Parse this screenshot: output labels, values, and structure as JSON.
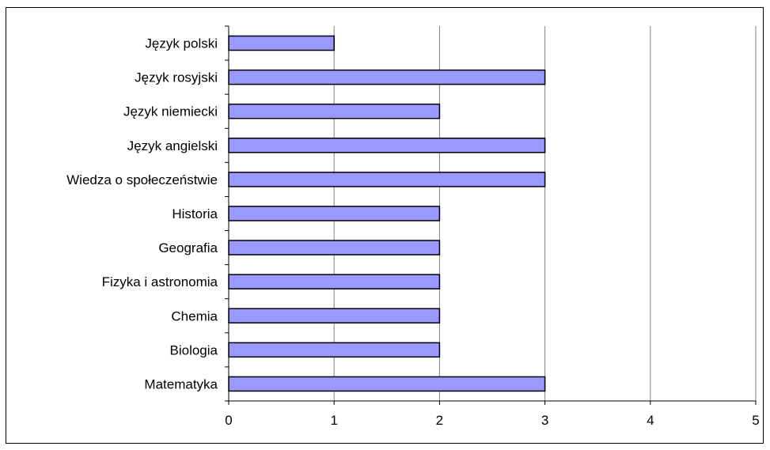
{
  "chart_data": {
    "type": "bar",
    "orientation": "horizontal",
    "categories": [
      "Matematyka",
      "Biologia",
      "Chemia",
      "Fizyka i astronomia",
      "Geografia",
      "Historia",
      "Wiedza o społeczeństwie",
      "Język angielski",
      "Język niemiecki",
      "Język rosyjski",
      "Język polski"
    ],
    "values": [
      3,
      2,
      2,
      2,
      2,
      2,
      3,
      3,
      2,
      3,
      1
    ],
    "xlim": [
      0,
      5
    ],
    "xticks": [
      0,
      1,
      2,
      3,
      4,
      5
    ],
    "title": "",
    "xlabel": "",
    "ylabel": "",
    "grid": "vertical",
    "legend": "none",
    "bar_color": "#9999ff",
    "bar_edge_color": "#000000",
    "grid_color": "#808080"
  }
}
